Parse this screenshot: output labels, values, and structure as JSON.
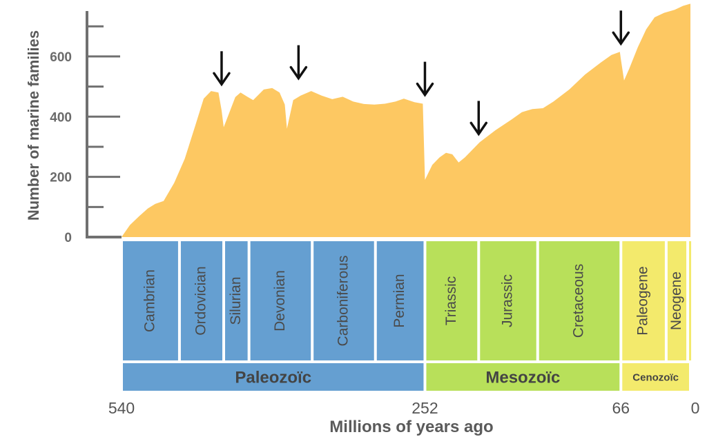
{
  "chart_data": {
    "type": "area",
    "ylabel": "Number of marine families",
    "xlabel": "Millions of years ago",
    "xlim": [
      540,
      0
    ],
    "ylim": [
      0,
      760
    ],
    "yticks": [
      0,
      200,
      400,
      600
    ],
    "xticks": [
      {
        "value": 540,
        "label": "540"
      },
      {
        "value": 252,
        "label": "252"
      },
      {
        "value": 66,
        "label": "66"
      },
      {
        "value": 0,
        "label": "0"
      }
    ],
    "colors": {
      "area": "#fdc862",
      "axis": "#707070",
      "paleozoic": "#659fd1",
      "mesozoic": "#b8e05a",
      "cenozoic": "#f3ea6c",
      "arrow": "#111111"
    },
    "series": [
      {
        "values": [
          {
            "x": 540,
            "y": 0
          },
          {
            "x": 532,
            "y": 40
          },
          {
            "x": 523,
            "y": 70
          },
          {
            "x": 515,
            "y": 95
          },
          {
            "x": 508,
            "y": 110
          },
          {
            "x": 500,
            "y": 120
          },
          {
            "x": 490,
            "y": 180
          },
          {
            "x": 480,
            "y": 260
          },
          {
            "x": 470,
            "y": 370
          },
          {
            "x": 462,
            "y": 460
          },
          {
            "x": 455,
            "y": 485
          },
          {
            "x": 448,
            "y": 480
          },
          {
            "x": 445,
            "y": 420
          },
          {
            "x": 443,
            "y": 365
          },
          {
            "x": 438,
            "y": 410
          },
          {
            "x": 432,
            "y": 465
          },
          {
            "x": 427,
            "y": 480
          },
          {
            "x": 420,
            "y": 465
          },
          {
            "x": 415,
            "y": 455
          },
          {
            "x": 405,
            "y": 490
          },
          {
            "x": 397,
            "y": 495
          },
          {
            "x": 390,
            "y": 480
          },
          {
            "x": 385,
            "y": 440
          },
          {
            "x": 383,
            "y": 360
          },
          {
            "x": 377,
            "y": 455
          },
          {
            "x": 370,
            "y": 470
          },
          {
            "x": 360,
            "y": 485
          },
          {
            "x": 350,
            "y": 470
          },
          {
            "x": 340,
            "y": 458
          },
          {
            "x": 330,
            "y": 466
          },
          {
            "x": 320,
            "y": 450
          },
          {
            "x": 310,
            "y": 442
          },
          {
            "x": 300,
            "y": 440
          },
          {
            "x": 290,
            "y": 443
          },
          {
            "x": 280,
            "y": 450
          },
          {
            "x": 272,
            "y": 460
          },
          {
            "x": 262,
            "y": 448
          },
          {
            "x": 254,
            "y": 443
          },
          {
            "x": 252,
            "y": 190
          },
          {
            "x": 245,
            "y": 240
          },
          {
            "x": 238,
            "y": 265
          },
          {
            "x": 232,
            "y": 280
          },
          {
            "x": 226,
            "y": 275
          },
          {
            "x": 220,
            "y": 248
          },
          {
            "x": 214,
            "y": 265
          },
          {
            "x": 200,
            "y": 315
          },
          {
            "x": 185,
            "y": 355
          },
          {
            "x": 170,
            "y": 390
          },
          {
            "x": 160,
            "y": 415
          },
          {
            "x": 150,
            "y": 425
          },
          {
            "x": 140,
            "y": 428
          },
          {
            "x": 130,
            "y": 450
          },
          {
            "x": 115,
            "y": 490
          },
          {
            "x": 100,
            "y": 540
          },
          {
            "x": 85,
            "y": 580
          },
          {
            "x": 75,
            "y": 605
          },
          {
            "x": 67,
            "y": 615
          },
          {
            "x": 66,
            "y": 590
          },
          {
            "x": 63,
            "y": 520
          },
          {
            "x": 58,
            "y": 560
          },
          {
            "x": 50,
            "y": 630
          },
          {
            "x": 42,
            "y": 690
          },
          {
            "x": 34,
            "y": 730
          },
          {
            "x": 25,
            "y": 745
          },
          {
            "x": 15,
            "y": 755
          },
          {
            "x": 7,
            "y": 768
          },
          {
            "x": 0,
            "y": 775
          }
        ]
      }
    ],
    "extinction_arrows": [
      {
        "x": 445,
        "y": 480
      },
      {
        "x": 372,
        "y": 500
      },
      {
        "x": 252,
        "y": 445
      },
      {
        "x": 201,
        "y": 315
      },
      {
        "x": 66,
        "y": 615
      }
    ],
    "periods": [
      {
        "name": "Cambrian",
        "start": 540,
        "end": 485,
        "era": "paleozoic"
      },
      {
        "name": "Ordovician",
        "start": 485,
        "end": 443,
        "era": "paleozoic"
      },
      {
        "name": "Silurian",
        "start": 443,
        "end": 419,
        "era": "paleozoic"
      },
      {
        "name": "Devonian",
        "start": 419,
        "end": 359,
        "era": "paleozoic"
      },
      {
        "name": "Carboniferous",
        "start": 359,
        "end": 299,
        "era": "paleozoic"
      },
      {
        "name": "Permian",
        "start": 299,
        "end": 252,
        "era": "paleozoic"
      },
      {
        "name": "Triassic",
        "start": 252,
        "end": 201,
        "era": "mesozoic"
      },
      {
        "name": "Jurassic",
        "start": 201,
        "end": 145,
        "era": "mesozoic"
      },
      {
        "name": "Cretaceous",
        "start": 145,
        "end": 66,
        "era": "mesozoic"
      },
      {
        "name": "Paleogene",
        "start": 66,
        "end": 23,
        "era": "cenozoic"
      },
      {
        "name": "Neogene",
        "start": 23,
        "end": 2.6,
        "era": "cenozoic"
      },
      {
        "name": "",
        "start": 2.6,
        "end": 0,
        "era": "cenozoic"
      }
    ],
    "eras": [
      {
        "key": "paleozoic",
        "name": "Paleozoïc",
        "start": 540,
        "end": 252
      },
      {
        "key": "mesozoic",
        "name": "Mesozoïc",
        "start": 252,
        "end": 66
      },
      {
        "key": "cenozoic",
        "name": "Cenozoïc",
        "start": 66,
        "end": 0
      }
    ]
  }
}
